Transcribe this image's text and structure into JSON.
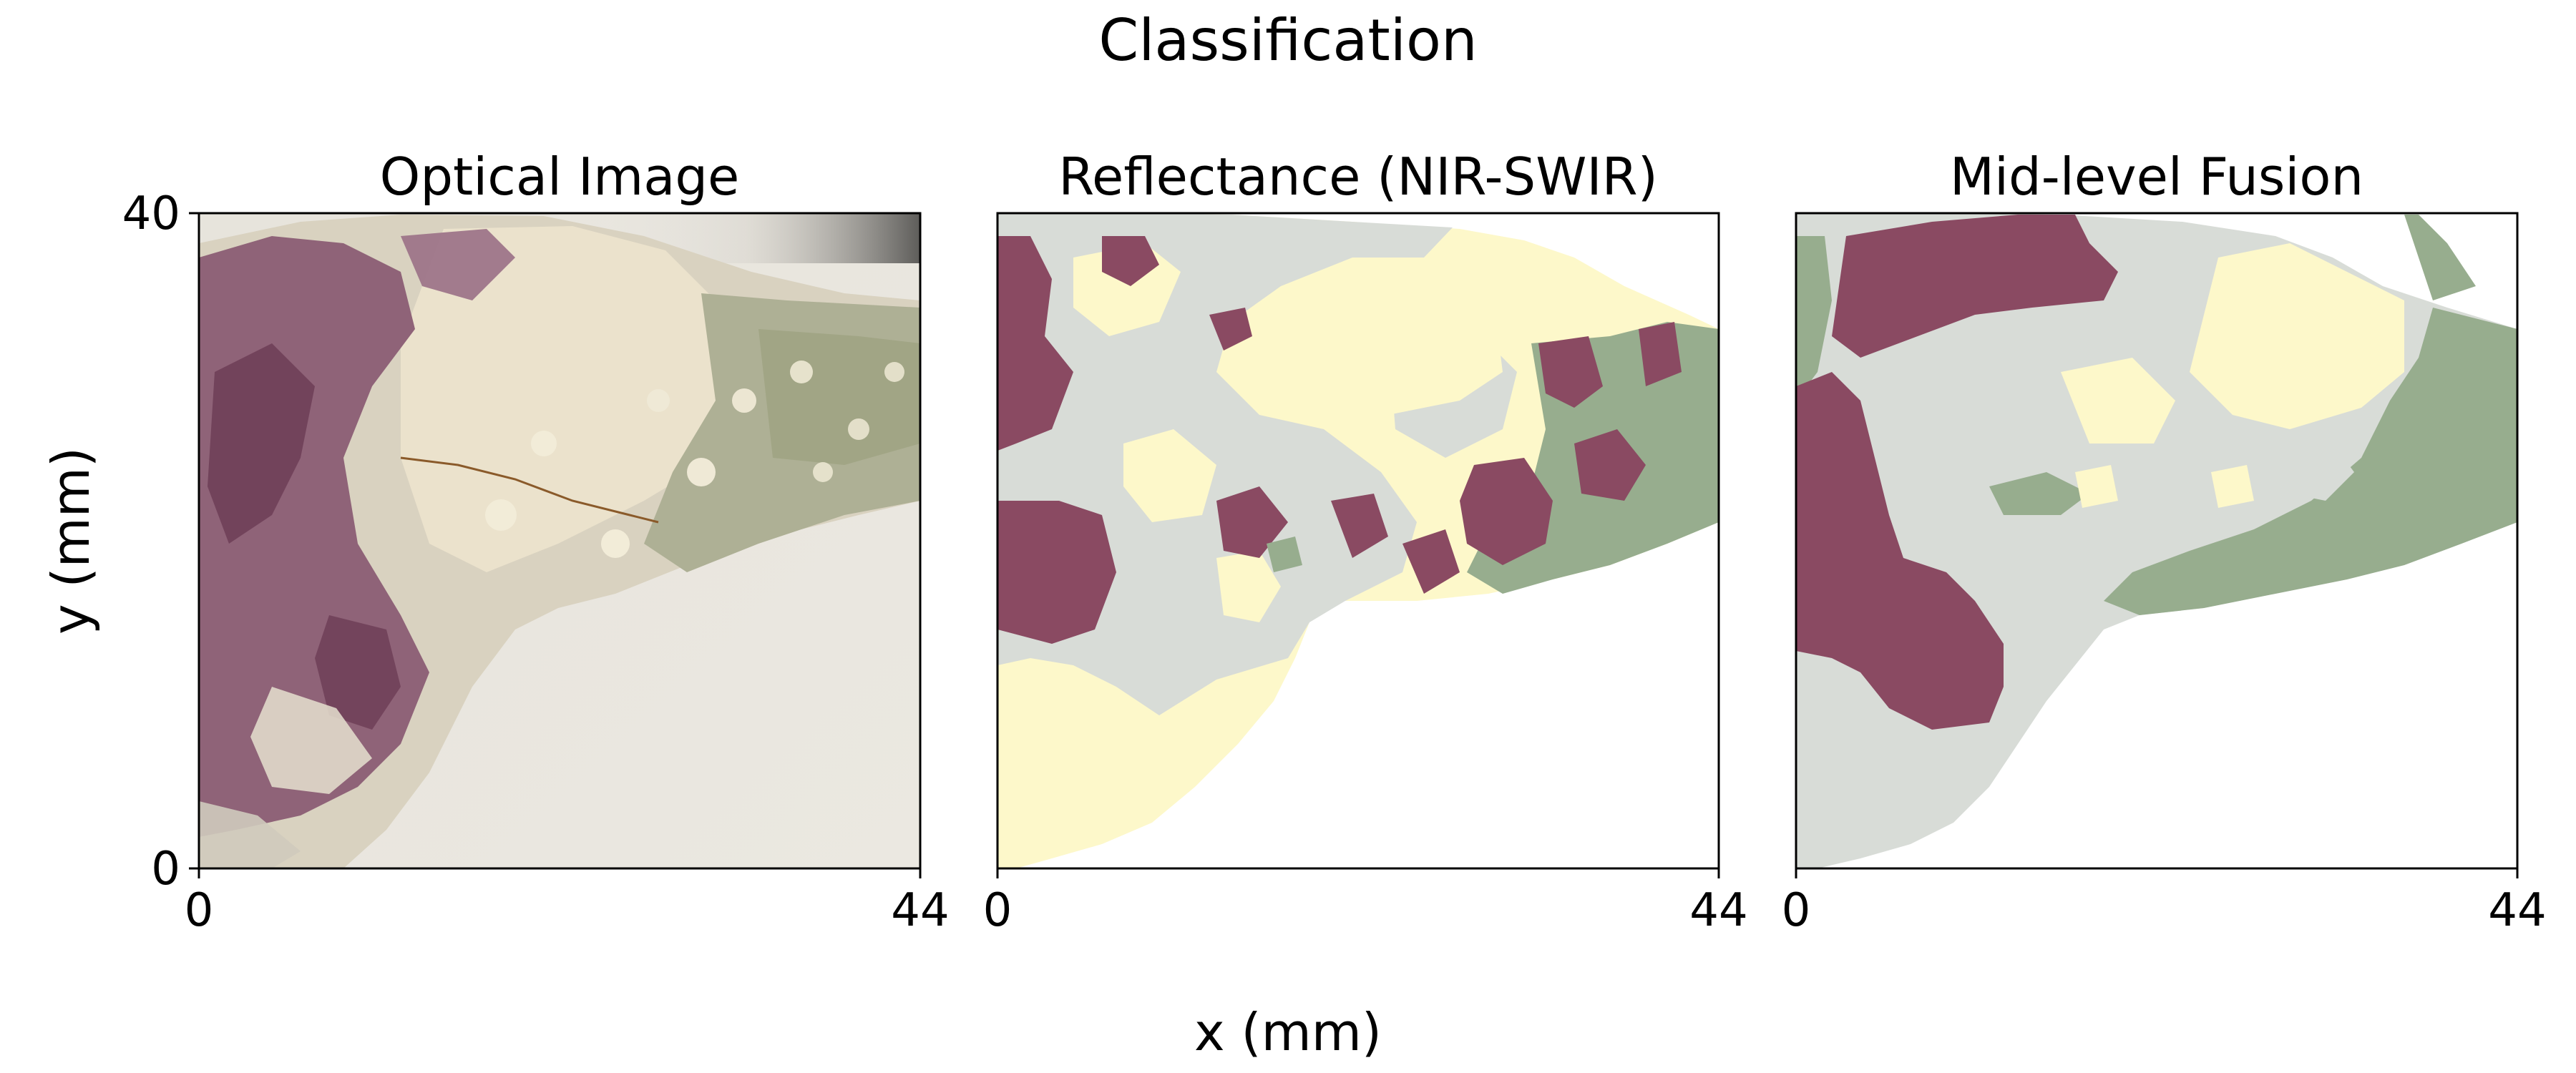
{
  "figure": {
    "title": "Classification",
    "xlabel": "x (mm)",
    "ylabel": "y (mm)"
  },
  "colors": {
    "class_purple": "#8a4a62",
    "class_gray": "#d8dcd7",
    "class_yellow": "#fdf8ca",
    "class_green": "#97ad8e",
    "paper": "#ffffff"
  },
  "chart_data": [
    {
      "type": "heatmap",
      "title": "Optical Image",
      "xlim": [
        0,
        44
      ],
      "ylim": [
        0,
        40
      ],
      "x_ticks": [
        "0",
        "44"
      ],
      "y_ticks": [
        "0",
        "40"
      ]
    },
    {
      "type": "heatmap",
      "title": "Reflectance (NIR-SWIR)",
      "xlim": [
        0,
        44
      ],
      "ylim": [
        0,
        40
      ],
      "x_ticks": [
        "0",
        "44"
      ],
      "y_ticks": []
    },
    {
      "type": "heatmap",
      "title": "Mid-level Fusion",
      "xlim": [
        0,
        44
      ],
      "ylim": [
        0,
        40
      ],
      "x_ticks": [
        "0",
        "44"
      ],
      "y_ticks": []
    }
  ]
}
